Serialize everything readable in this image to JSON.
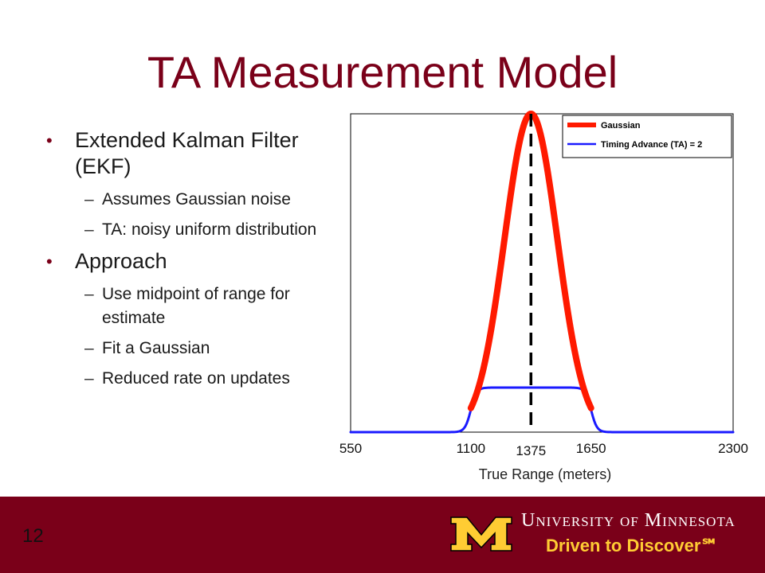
{
  "slide": {
    "title": "TA Measurement Model",
    "number": "12"
  },
  "bullets": [
    {
      "text": "Extended  Kalman Filter (EKF)",
      "sub": [
        "Assumes Gaussian noise",
        "TA: noisy uniform distribution"
      ]
    },
    {
      "text": "Approach",
      "sub": [
        "Use midpoint of range for estimate",
        "Fit a Gaussian",
        "Reduced rate  on updates"
      ]
    }
  ],
  "footer": {
    "university": "University of Minnesota",
    "tagline": "Driven to Discover℠"
  },
  "colors": {
    "maroon": "#7a0019",
    "gold": "#ffcc33",
    "gaussian": "#ff1a00",
    "ta": "#1a1aff"
  },
  "chart_data": {
    "type": "line",
    "xlabel": "True Range (meters)",
    "xlim": [
      550,
      2300
    ],
    "ylim": [
      0,
      1
    ],
    "xticks": [
      550,
      1100,
      1375,
      1650,
      2300
    ],
    "grid": false,
    "legend_position": "top-right",
    "series": [
      {
        "name": "Gaussian",
        "color": "#ff1a00",
        "kind": "gaussian",
        "mean": 1375,
        "std": 121,
        "peak": 1.0,
        "x_range": [
          1100,
          1650
        ]
      },
      {
        "name": "Timing Advance (TA) = 2",
        "color": "#1a1aff",
        "kind": "smoothed-uniform",
        "low": 1100,
        "high": 1650,
        "level": 0.14,
        "edge_width": 80,
        "x_range": [
          550,
          2300
        ]
      }
    ],
    "vline": {
      "x": 1375,
      "style": "dashed",
      "color": "#000000"
    }
  }
}
